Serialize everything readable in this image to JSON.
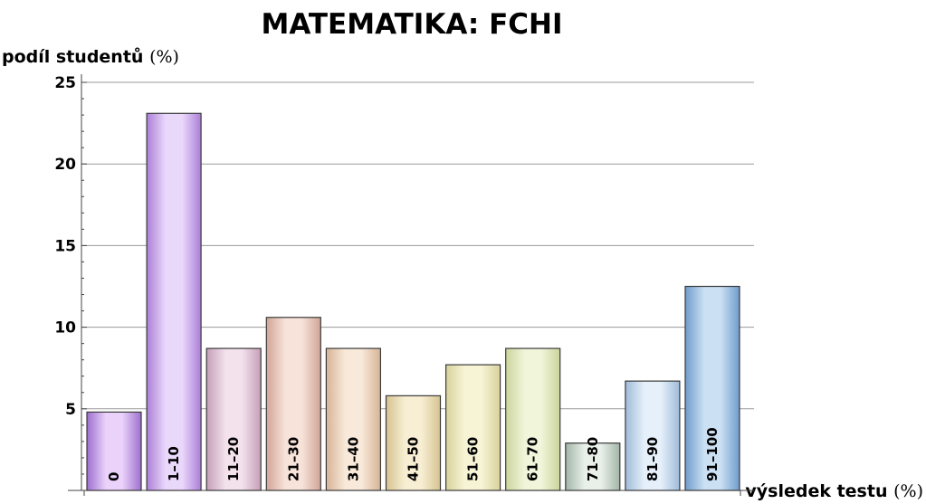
{
  "chart_data": {
    "type": "bar",
    "title": "MATEMATIKA: FCHI",
    "ylabel": "podíl studentů",
    "ylabel_unit": "(%)",
    "xlabel": "výsledek testu",
    "xlabel_unit": "(%)",
    "categories": [
      "0",
      "1–10",
      "11–20",
      "21–30",
      "31–40",
      "41–50",
      "51–60",
      "61–70",
      "71–80",
      "81–90",
      "91–100"
    ],
    "values": [
      4.8,
      23.1,
      8.7,
      10.6,
      8.7,
      5.8,
      7.7,
      8.7,
      2.9,
      6.7,
      12.5
    ],
    "ylim": [
      0,
      25.5
    ],
    "yticks": [
      5,
      10,
      15,
      20,
      25
    ],
    "grid": true,
    "colors": [
      [
        "#9e6fcf",
        "#ead2fa"
      ],
      [
        "#ab7fd8",
        "#ead8fb"
      ],
      [
        "#c59fb8",
        "#f3e1ec"
      ],
      [
        "#d1a597",
        "#f7e3da"
      ],
      [
        "#d6b496",
        "#f8e9da"
      ],
      [
        "#d6c391",
        "#f7eed3"
      ],
      [
        "#d8d29b",
        "#f7f4d6"
      ],
      [
        "#cbd49c",
        "#f1f5da"
      ],
      [
        "#a2b5a7",
        "#e9f0ea"
      ],
      [
        "#9ebcd9",
        "#e6f0fa"
      ],
      [
        "#6f9ccb",
        "#cbe0f3"
      ]
    ]
  }
}
